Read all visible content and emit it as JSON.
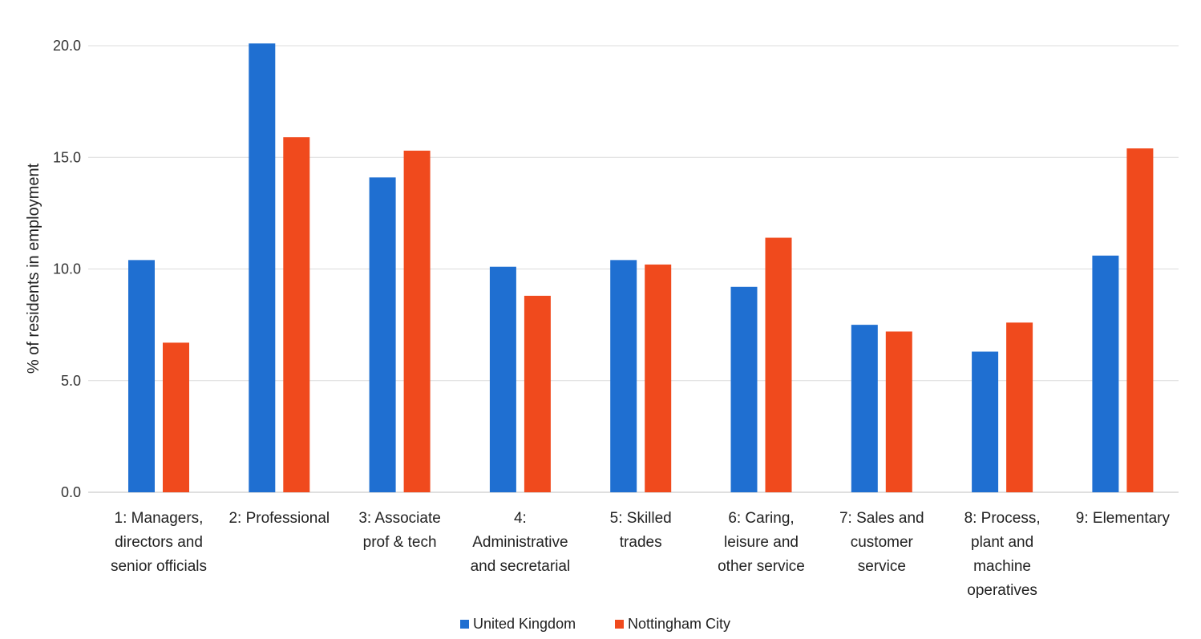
{
  "chart_data": {
    "type": "bar",
    "title": "",
    "xlabel": "",
    "ylabel": "% of residents in employment",
    "ylim": [
      0,
      20
    ],
    "yticks": [
      "0.0",
      "5.0",
      "10.0",
      "15.0",
      "20.0"
    ],
    "grid": true,
    "legend_position": "bottom",
    "categories": [
      [
        "1: Managers,",
        "directors and",
        "senior officials"
      ],
      [
        "2: Professional"
      ],
      [
        "3: Associate",
        "prof & tech"
      ],
      [
        "4:",
        "Administrative",
        "and secretarial"
      ],
      [
        "5: Skilled",
        "trades"
      ],
      [
        "6: Caring,",
        "leisure and",
        "other service"
      ],
      [
        "7: Sales and",
        "customer",
        "service"
      ],
      [
        "8: Process,",
        "plant and",
        "machine",
        "operatives"
      ],
      [
        "9: Elementary"
      ]
    ],
    "series": [
      {
        "name": "United Kingdom",
        "color": "#1f6fd1",
        "values": [
          10.4,
          20.1,
          14.1,
          10.1,
          10.4,
          9.2,
          7.5,
          6.3,
          10.6
        ]
      },
      {
        "name": "Nottingham City",
        "color": "#f04a1d",
        "values": [
          6.7,
          15.9,
          15.3,
          8.8,
          10.2,
          11.4,
          7.2,
          7.6,
          15.4
        ]
      }
    ]
  }
}
